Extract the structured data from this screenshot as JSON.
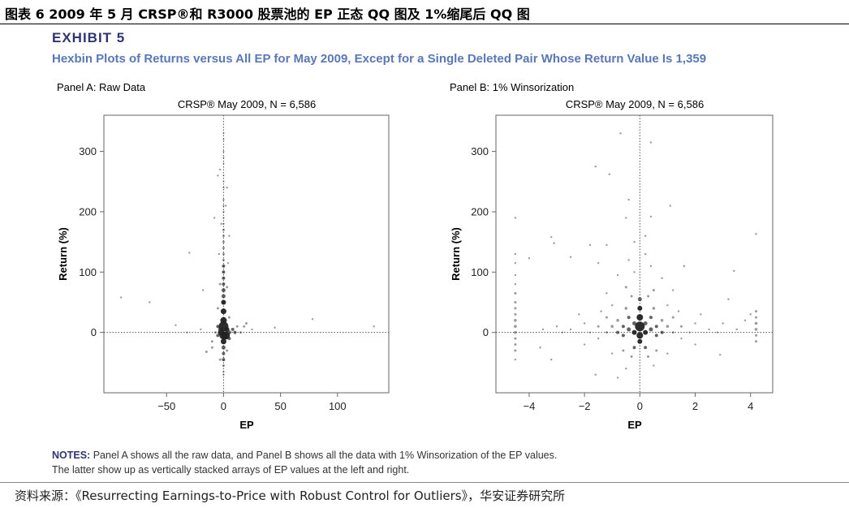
{
  "figure_title": "图表 6 2009 年 5 月 CRSP®和 R3000 股票池的 EP 正态 QQ 图及 1%缩尾后 QQ 图",
  "exhibit_label": "EXHIBIT 5",
  "exhibit_subtitle": "Hexbin Plots of Returns versus All EP for May 2009, Except for a Single Deleted Pair Whose Return Value Is 1,359",
  "notes": {
    "label": "NOTES:",
    "line1": "Panel A shows all the raw data, and Panel B shows all the data with 1% Winsorization of the EP values.",
    "line2": "The latter show up as vertically stacked arrays of EP values at the left and right."
  },
  "source": "资料来源：《Resurrecting Earnings-to-Price with Robust Control for Outliers》，华安证券研究所",
  "colors": {
    "exhibit": "#2f3570",
    "subtitle": "#5a77b8",
    "points": "#222222"
  },
  "chart_data": [
    {
      "type": "scatter",
      "panel": "Panel A: Raw Data",
      "title": "CRSP® May 2009, N = 6,586",
      "xlabel": "EP",
      "ylabel": "Return (%)",
      "xlim": [
        -105,
        145
      ],
      "ylim": [
        -100,
        360
      ],
      "xticks": [
        -50,
        0,
        50,
        100
      ],
      "yticks": [
        0,
        100,
        200,
        300
      ],
      "reference_lines": {
        "x": 0,
        "y": 0
      },
      "points": [
        [
          0,
          10,
          6
        ],
        [
          0,
          20,
          4
        ],
        [
          0,
          35,
          3.5
        ],
        [
          0,
          50,
          3
        ],
        [
          0,
          60,
          2.5
        ],
        [
          0,
          70,
          2.5
        ],
        [
          0,
          80,
          2
        ],
        [
          0,
          90,
          2
        ],
        [
          0,
          100,
          2
        ],
        [
          0,
          110,
          2
        ],
        [
          0,
          120,
          1.5
        ],
        [
          0,
          130,
          1.5
        ],
        [
          0,
          140,
          1.5
        ],
        [
          0,
          150,
          1.5
        ],
        [
          0,
          160,
          1.5
        ],
        [
          0,
          170,
          1.5
        ],
        [
          0,
          180,
          1.2
        ],
        [
          0,
          190,
          1.2
        ],
        [
          0,
          200,
          1.2
        ],
        [
          0,
          210,
          1.2
        ],
        [
          0,
          220,
          1.2
        ],
        [
          0,
          240,
          1.2
        ],
        [
          0,
          250,
          1
        ],
        [
          0,
          260,
          1
        ],
        [
          0,
          280,
          1
        ],
        [
          0,
          290,
          1
        ],
        [
          0,
          300,
          1
        ],
        [
          0,
          320,
          1
        ],
        [
          0,
          330,
          1
        ],
        [
          0,
          -5,
          5
        ],
        [
          0,
          -15,
          3.5
        ],
        [
          0,
          -25,
          2.5
        ],
        [
          0,
          -35,
          2
        ],
        [
          0,
          -45,
          2
        ],
        [
          0,
          -55,
          1.5
        ],
        [
          0,
          -65,
          1.2
        ],
        [
          0,
          -70,
          1.2
        ],
        [
          2,
          -5,
          5
        ],
        [
          -2,
          0,
          4
        ],
        [
          3,
          5,
          3
        ],
        [
          -3,
          5,
          2.5
        ],
        [
          5,
          0,
          2.5
        ],
        [
          -5,
          -5,
          2
        ],
        [
          5,
          -10,
          2
        ],
        [
          -5,
          10,
          2
        ],
        [
          8,
          5,
          2
        ],
        [
          10,
          0,
          2
        ],
        [
          -7,
          0,
          1.5
        ],
        [
          -10,
          -25,
          1.5
        ],
        [
          -10,
          -15,
          1.5
        ],
        [
          12,
          10,
          1.5
        ],
        [
          15,
          0,
          1.5
        ],
        [
          20,
          15,
          1.5
        ],
        [
          18,
          10,
          1.5
        ],
        [
          25,
          5,
          1.2
        ],
        [
          -15,
          -32,
          1.5
        ],
        [
          -20,
          5,
          1.2
        ],
        [
          -18,
          70,
          1.2
        ],
        [
          -30,
          132,
          1.2
        ],
        [
          -8,
          190,
          1.2
        ],
        [
          -5,
          260,
          1.2
        ],
        [
          -3,
          270,
          1.2
        ],
        [
          3,
          240,
          1.2
        ],
        [
          5,
          160,
          1.2
        ],
        [
          -2,
          180,
          1.2
        ],
        [
          2,
          210,
          1.2
        ],
        [
          -4,
          130,
          1.2
        ],
        [
          4,
          115,
          1.2
        ],
        [
          -3,
          80,
          1.5
        ],
        [
          3,
          75,
          1.5
        ],
        [
          -5,
          40,
          1.5
        ],
        [
          5,
          25,
          1.5
        ],
        [
          -3,
          -45,
          1.5
        ],
        [
          3,
          -30,
          1.5
        ],
        [
          -90,
          58,
          1.2
        ],
        [
          -65,
          50,
          1.2
        ],
        [
          -42,
          12,
          1.2
        ],
        [
          -32,
          0,
          1.2
        ],
        [
          45,
          8,
          1.2
        ],
        [
          78,
          22,
          1.2
        ],
        [
          132,
          10,
          1.2
        ]
      ]
    },
    {
      "type": "scatter",
      "panel": "Panel B: 1% Winsorization",
      "title": "CRSP® May 2009, N = 6,586",
      "xlabel": "EP",
      "ylabel": "Return (%)",
      "xlim": [
        -5.2,
        4.8
      ],
      "ylim": [
        -100,
        360
      ],
      "xticks": [
        -4,
        -2,
        0,
        2,
        4
      ],
      "yticks": [
        0,
        100,
        200,
        300
      ],
      "reference_lines": {
        "x": 0,
        "y": 0
      },
      "points": [
        [
          0,
          10,
          6
        ],
        [
          0,
          -5,
          4
        ],
        [
          0,
          25,
          4
        ],
        [
          0,
          40,
          3
        ],
        [
          0,
          55,
          2.5
        ],
        [
          0,
          -15,
          3
        ],
        [
          0.2,
          0,
          3
        ],
        [
          -0.2,
          0,
          3
        ],
        [
          0.2,
          15,
          2.5
        ],
        [
          -0.2,
          15,
          2.5
        ],
        [
          0.4,
          5,
          2.5
        ],
        [
          -0.4,
          5,
          2.5
        ],
        [
          0.4,
          25,
          2
        ],
        [
          -0.4,
          25,
          2
        ],
        [
          0.6,
          10,
          2
        ],
        [
          -0.6,
          10,
          2
        ],
        [
          0.6,
          -5,
          2
        ],
        [
          -0.6,
          -5,
          2
        ],
        [
          0.2,
          -25,
          2
        ],
        [
          -0.2,
          -25,
          2
        ],
        [
          0.8,
          0,
          2
        ],
        [
          -0.8,
          0,
          2
        ],
        [
          0.8,
          20,
          1.8
        ],
        [
          -0.8,
          20,
          1.8
        ],
        [
          1.0,
          10,
          1.8
        ],
        [
          -1.0,
          10,
          1.8
        ],
        [
          1.2,
          0,
          1.5
        ],
        [
          -1.2,
          0,
          1.5
        ],
        [
          1.2,
          25,
          1.5
        ],
        [
          -1.2,
          25,
          1.5
        ],
        [
          0.5,
          40,
          1.8
        ],
        [
          -0.5,
          40,
          1.8
        ],
        [
          0.3,
          60,
          1.5
        ],
        [
          -0.3,
          60,
          1.5
        ],
        [
          0.5,
          70,
          1.5
        ],
        [
          -0.5,
          75,
          1.5
        ],
        [
          0.3,
          -40,
          1.5
        ],
        [
          -0.3,
          -40,
          1.5
        ],
        [
          0.6,
          -30,
          1.5
        ],
        [
          -0.6,
          -30,
          1.5
        ],
        [
          1.5,
          10,
          1.5
        ],
        [
          -1.5,
          10,
          1.5
        ],
        [
          1.5,
          -10,
          1.2
        ],
        [
          -1.5,
          -10,
          1.2
        ],
        [
          1.8,
          0,
          1.2
        ],
        [
          -1.8,
          0,
          1.2
        ],
        [
          2.0,
          15,
          1.2
        ],
        [
          -2.0,
          15,
          1.2
        ],
        [
          1.0,
          45,
          1.2
        ],
        [
          -1.0,
          45,
          1.2
        ],
        [
          1.4,
          35,
          1.2
        ],
        [
          -1.4,
          35,
          1.2
        ],
        [
          0.8,
          90,
          1.2
        ],
        [
          -0.8,
          95,
          1.2
        ],
        [
          0.4,
          110,
          1.2
        ],
        [
          -0.4,
          120,
          1.2
        ],
        [
          0.2,
          130,
          1.2
        ],
        [
          -0.2,
          100,
          1.2
        ],
        [
          1.2,
          70,
          1.2
        ],
        [
          -1.2,
          65,
          1.2
        ],
        [
          2.2,
          30,
          1.2
        ],
        [
          -2.2,
          30,
          1.2
        ],
        [
          2.5,
          5,
          1.2
        ],
        [
          -2.5,
          5,
          1.2
        ],
        [
          2.8,
          0,
          1.2
        ],
        [
          -2.8,
          0,
          1.2
        ],
        [
          3.0,
          15,
          1.2
        ],
        [
          -3.0,
          10,
          1.2
        ],
        [
          3.5,
          5,
          1.2
        ],
        [
          -3.5,
          5,
          1.2
        ],
        [
          2.0,
          -20,
          1.2
        ],
        [
          -2.0,
          -20,
          1.2
        ],
        [
          1.0,
          -35,
          1.2
        ],
        [
          -1.0,
          -35,
          1.2
        ],
        [
          0.5,
          -55,
          1.2
        ],
        [
          -0.5,
          -60,
          1.2
        ],
        [
          -0.8,
          -75,
          1.2
        ],
        [
          -1.6,
          -70,
          1.2
        ],
        [
          -3.2,
          -45,
          1.2
        ],
        [
          -3.6,
          -25,
          1.2
        ],
        [
          2.9,
          -37,
          1.2
        ],
        [
          3.4,
          102,
          1.2
        ],
        [
          3.2,
          55,
          1.2
        ],
        [
          1.1,
          210,
          1.2
        ],
        [
          0.4,
          315,
          1.2
        ],
        [
          -0.7,
          330,
          1.2
        ],
        [
          -1.1,
          262,
          1.2
        ],
        [
          -1.6,
          275,
          1.2
        ],
        [
          -0.4,
          220,
          1.2
        ],
        [
          -0.5,
          190,
          1.2
        ],
        [
          0.4,
          192,
          1.2
        ],
        [
          -1.8,
          145,
          1.2
        ],
        [
          -1.2,
          145,
          1.2
        ],
        [
          -3.2,
          158,
          1.2
        ],
        [
          -3.1,
          148,
          1.2
        ],
        [
          -4.0,
          123,
          1.2
        ],
        [
          -2.5,
          125,
          1.2
        ],
        [
          -1.5,
          115,
          1.2
        ],
        [
          1.6,
          110,
          1.2
        ],
        [
          -0.2,
          150,
          1.2
        ],
        [
          0.2,
          160,
          1.2
        ],
        [
          -4.5,
          190,
          1.2
        ],
        [
          -4.5,
          130,
          1.2
        ],
        [
          -4.5,
          115,
          1.2
        ],
        [
          -4.5,
          95,
          1.2
        ],
        [
          -4.5,
          80,
          1.2
        ],
        [
          -4.5,
          65,
          1.5
        ],
        [
          -4.5,
          50,
          1.5
        ],
        [
          -4.5,
          40,
          1.5
        ],
        [
          -4.5,
          30,
          1.5
        ],
        [
          -4.5,
          20,
          1.8
        ],
        [
          -4.5,
          10,
          1.8
        ],
        [
          -4.5,
          0,
          1.8
        ],
        [
          -4.5,
          -10,
          1.5
        ],
        [
          -4.5,
          -20,
          1.5
        ],
        [
          -4.5,
          -30,
          1.5
        ],
        [
          -4.5,
          -45,
          1.2
        ],
        [
          4.2,
          163,
          1.2
        ],
        [
          4.2,
          35,
          1.5
        ],
        [
          4.2,
          25,
          1.5
        ],
        [
          4.2,
          15,
          1.8
        ],
        [
          4.2,
          5,
          1.8
        ],
        [
          4.2,
          -5,
          1.5
        ],
        [
          4.2,
          -15,
          1.5
        ],
        [
          4.0,
          30,
          1.2
        ],
        [
          3.8,
          20,
          1.2
        ]
      ]
    }
  ]
}
